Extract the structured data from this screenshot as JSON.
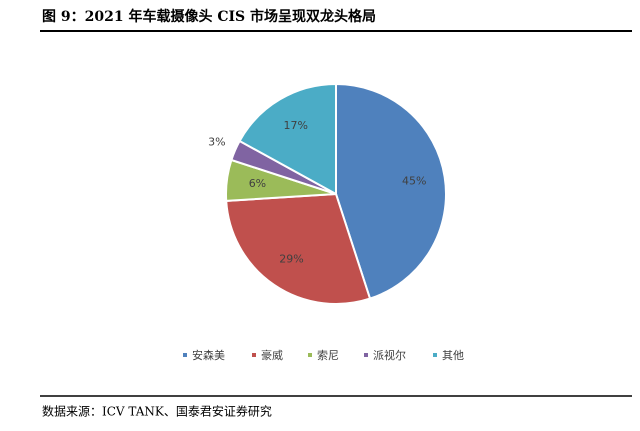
{
  "chart_data": {
    "type": "pie",
    "title": "图 9：2021 年车载摄像头 CIS 市场呈现双龙头格局",
    "source": "数据来源：ICV TANK、国泰君安证券研究",
    "categories": [
      "安森美",
      "豪威",
      "索尼",
      "派视尔",
      "其他"
    ],
    "values": [
      45,
      29,
      6,
      3,
      17
    ],
    "value_labels": [
      "45%",
      "29%",
      "6%",
      "3%",
      "17%"
    ],
    "colors": [
      "#4f81bd",
      "#c0504d",
      "#9bbb59",
      "#8064a2",
      "#4bacc6"
    ],
    "legend": "bottom"
  }
}
